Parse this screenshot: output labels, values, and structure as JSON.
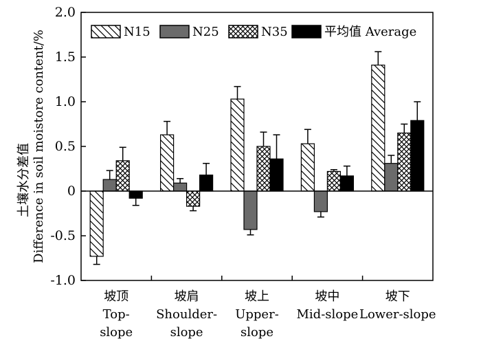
{
  "chart_data": {
    "type": "bar",
    "title": "",
    "xlabel": "",
    "ylabel_line1": "土壤水分差值",
    "ylabel_line2": "Difference in soil moistore content/%",
    "ylim": [
      -1.0,
      2.0
    ],
    "yticks": [
      "2.0",
      "1.5",
      "1.0",
      "0.5",
      "0",
      "-0.5",
      "-1.0"
    ],
    "ytick_values": [
      2.0,
      1.5,
      1.0,
      0.5,
      0,
      -0.5,
      -1.0
    ],
    "categories": [
      {
        "cn": "坡顶",
        "en1": "Top-",
        "en2": "slope"
      },
      {
        "cn": "坡肩",
        "en1": "Shoulder-",
        "en2": "slope"
      },
      {
        "cn": "坡上",
        "en1": "Upper-",
        "en2": "slope"
      },
      {
        "cn": "坡中",
        "en1": "Mid-slope",
        "en2": ""
      },
      {
        "cn": "坡下",
        "en1": "Lower-slope",
        "en2": ""
      }
    ],
    "series": [
      {
        "name": "N15",
        "legend": "N15",
        "pattern": "diag",
        "values": [
          -0.73,
          0.63,
          1.03,
          0.53,
          1.41
        ],
        "errors": [
          0.09,
          0.15,
          0.14,
          0.16,
          0.15
        ]
      },
      {
        "name": "N25",
        "legend": "N25",
        "pattern": "gray",
        "values": [
          0.13,
          0.09,
          -0.43,
          -0.23,
          0.31
        ],
        "errors": [
          0.1,
          0.05,
          0.06,
          0.06,
          0.09
        ]
      },
      {
        "name": "N35",
        "legend": "N35",
        "pattern": "cross",
        "values": [
          0.34,
          -0.17,
          0.5,
          0.22,
          0.65
        ],
        "errors": [
          0.15,
          0.05,
          0.16,
          0.02,
          0.1
        ]
      },
      {
        "name": "Average",
        "legend": "平均值 Average",
        "pattern": "black",
        "values": [
          -0.08,
          0.18,
          0.36,
          0.17,
          0.79
        ],
        "errors": [
          0.08,
          0.13,
          0.27,
          0.11,
          0.21
        ]
      }
    ],
    "legend_position": "top",
    "grid": false
  },
  "colors": {
    "gray": "#6b6b6b",
    "black": "#000000",
    "white": "#ffffff"
  }
}
